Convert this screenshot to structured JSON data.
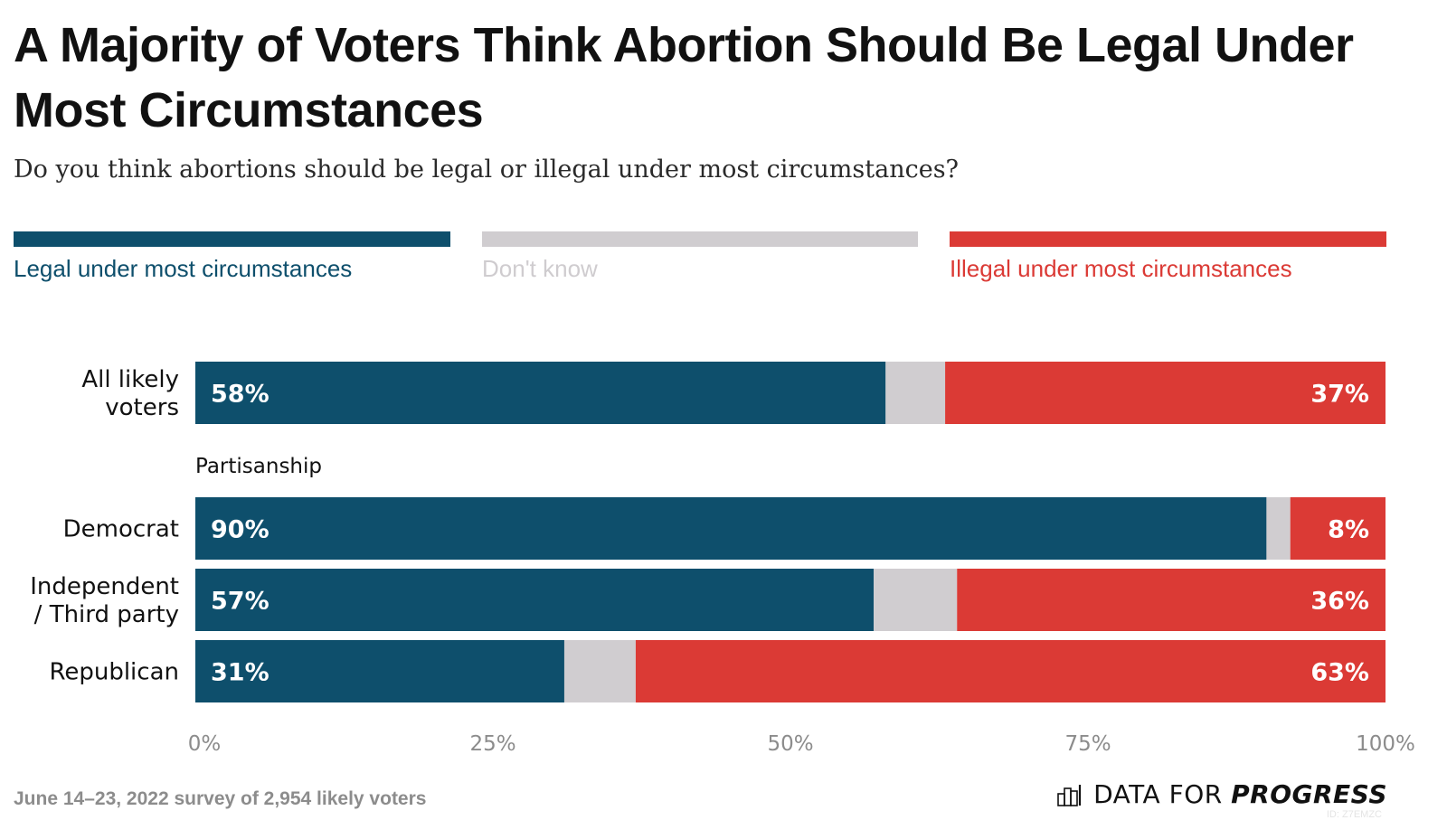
{
  "chart_data": {
    "type": "bar",
    "orientation": "horizontal",
    "stacked": true,
    "title": "A Majority of Voters Think Abortion Should Be Legal Under Most Circumstances",
    "subtitle": "Do you think abortions should be legal or illegal under most circumstances?",
    "categories": [
      "All likely voters",
      "Democrat",
      "Independent / Third party",
      "Republican"
    ],
    "category_labels": [
      [
        "All likely",
        "voters"
      ],
      [
        "Democrat"
      ],
      [
        "Independent",
        "/ Third party"
      ],
      [
        "Republican"
      ]
    ],
    "group_label": "Partisanship",
    "series": [
      {
        "name": "Legal under most circumstances",
        "color": "#0e4f6c",
        "values": [
          58,
          90,
          57,
          31
        ],
        "labels": [
          "58%",
          "90%",
          "57%",
          "31%"
        ]
      },
      {
        "name": "Don't know",
        "color": "#d0cdd0",
        "values": [
          5,
          2,
          7,
          6
        ],
        "labels": [
          "",
          "",
          "",
          ""
        ]
      },
      {
        "name": "Illegal under most circumstances",
        "color": "#db3a35",
        "values": [
          37,
          8,
          36,
          63
        ],
        "labels": [
          "37%",
          "8%",
          "36%",
          "63%"
        ]
      }
    ],
    "xlabel": "",
    "ylabel": "",
    "xlim": [
      0,
      100
    ],
    "xticks": [
      0,
      25,
      50,
      75,
      100
    ],
    "xtick_labels": [
      "0%",
      "25%",
      "50%",
      "75%",
      "100%"
    ],
    "grid": false,
    "legend_position": "top"
  },
  "legend": {
    "items": [
      {
        "label": "Legal under most circumstances",
        "color": "#0e4f6c",
        "text_color": "#0e4f6c"
      },
      {
        "label": "Don't know",
        "color": "#d0cdd0",
        "text_color": "#cfcccf"
      },
      {
        "label": "Illegal under most circumstances",
        "color": "#db3a35",
        "text_color": "#db3a35"
      }
    ]
  },
  "footer": {
    "note": "June 14–23, 2022 survey of 2,954 likely voters",
    "brand_light": "DATA FOR ",
    "brand_bold": "PROGRESS",
    "brand_icon": "bar-chart-icon",
    "id_text": "ID: Z7EMZC"
  }
}
